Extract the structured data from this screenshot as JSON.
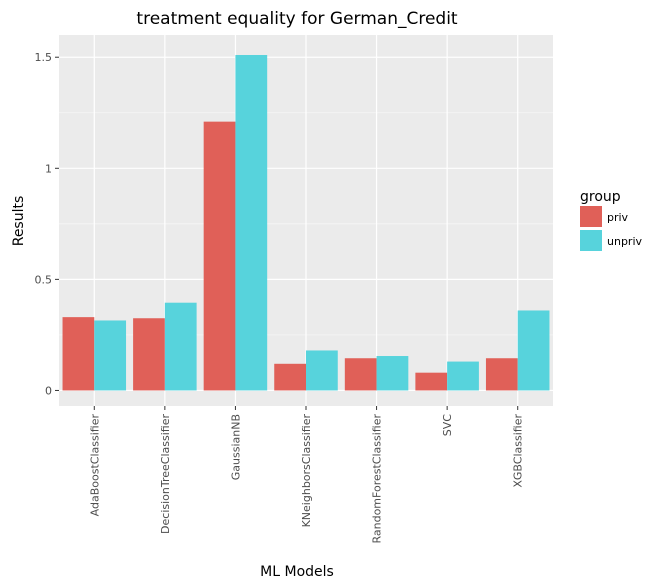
{
  "chart_data": {
    "type": "bar",
    "title": "treatment equality for German_Credit",
    "xlabel": "ML Models",
    "ylabel": "Results",
    "categories": [
      "AdaBoostClassifier",
      "DecisionTreeClassifier",
      "GaussianNB",
      "KNeighborsClassifier",
      "RandomForestClassifier",
      "SVC",
      "XGBClassifier"
    ],
    "series": [
      {
        "name": "priv",
        "color": "#e06058",
        "values": [
          0.33,
          0.325,
          1.21,
          0.12,
          0.145,
          0.08,
          0.145
        ]
      },
      {
        "name": "unpriv",
        "color": "#57d3dc",
        "values": [
          0.315,
          0.395,
          1.51,
          0.18,
          0.155,
          0.13,
          0.36
        ]
      }
    ],
    "ylim": [
      -0.07,
      1.6
    ],
    "yticks": [
      0,
      0.5,
      1,
      1.5
    ],
    "ytick_labels": [
      "0",
      "0.5",
      "1",
      "1.5"
    ],
    "grid": true,
    "legend": {
      "title": "group",
      "position": "right"
    },
    "panel_color": "#ebebeb"
  }
}
